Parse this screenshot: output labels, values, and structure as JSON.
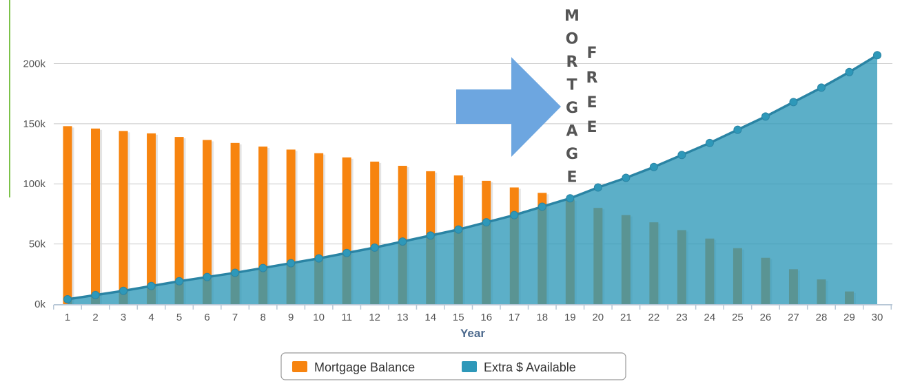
{
  "chart_data": {
    "type": "bar",
    "xlabel": "Year",
    "ylabel": "",
    "ylim": [
      0,
      210000
    ],
    "y_ticks": [
      0,
      50000,
      100000,
      150000,
      200000
    ],
    "y_tick_labels": [
      "0k",
      "50k",
      "100k",
      "150k",
      "200k"
    ],
    "grid": "horizontal",
    "legend_position": "bottom-center",
    "categories": [
      "1",
      "2",
      "3",
      "4",
      "5",
      "6",
      "7",
      "8",
      "9",
      "10",
      "11",
      "12",
      "13",
      "14",
      "15",
      "16",
      "17",
      "18",
      "19",
      "20",
      "21",
      "22",
      "23",
      "24",
      "25",
      "26",
      "27",
      "28",
      "29",
      "30"
    ],
    "series": [
      {
        "name": "Mortgage Balance",
        "type": "bar",
        "color": "#f7840f",
        "values": [
          148000,
          146000,
          144000,
          142000,
          139000,
          136500,
          134000,
          131000,
          128500,
          125500,
          122000,
          118500,
          115000,
          110500,
          107000,
          102500,
          97000,
          92500,
          87000,
          80000,
          74000,
          68000,
          61500,
          54500,
          46500,
          38500,
          29000,
          20500,
          10500,
          null
        ]
      },
      {
        "name": "Extra $ Available",
        "type": "area",
        "color": "#2e98b9",
        "values": [
          4000,
          7500,
          11000,
          15000,
          19000,
          22500,
          26000,
          30000,
          34000,
          38000,
          42500,
          47000,
          52000,
          57000,
          62000,
          68000,
          74000,
          81000,
          88000,
          97000,
          105000,
          114000,
          124000,
          134000,
          145000,
          156000,
          168000,
          180000,
          193000,
          207000
        ]
      }
    ],
    "annotations": {
      "word1": [
        "M",
        "O",
        "R",
        "T",
        "G",
        "A",
        "G",
        "E"
      ],
      "word2": [
        "F",
        "R",
        "E",
        "E"
      ],
      "arrow_color": "#6da6e0",
      "arrow_icon": "right-arrow-icon"
    }
  }
}
